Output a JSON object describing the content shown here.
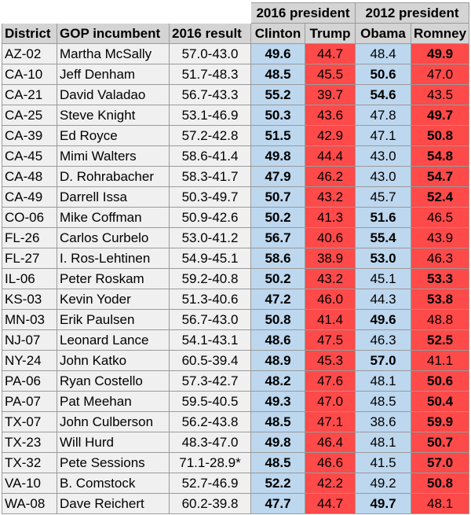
{
  "colors": {
    "dem": "#bdd7ee",
    "gop": "#ff4a4a",
    "header": "#d4d4d4",
    "row": "#f0f0f0"
  },
  "groups": [
    "2016 president",
    "2012 president"
  ],
  "headers": [
    "District",
    "GOP incumbent",
    "2016 result",
    "Clinton",
    "Trump",
    "Obama",
    "Romney"
  ],
  "rows": [
    {
      "district": "AZ-02",
      "incumbent": "Martha McSally",
      "result": "57.0-43.0",
      "clinton": "49.6",
      "trump": "44.7",
      "obama": "48.4",
      "romney": "49.9",
      "win16": "d",
      "win12": "r"
    },
    {
      "district": "CA-10",
      "incumbent": "Jeff Denham",
      "result": "51.7-48.3",
      "clinton": "48.5",
      "trump": "45.5",
      "obama": "50.6",
      "romney": "47.0",
      "win16": "d",
      "win12": "d"
    },
    {
      "district": "CA-21",
      "incumbent": "David Valadao",
      "result": "56.7-43.3",
      "clinton": "55.2",
      "trump": "39.7",
      "obama": "54.6",
      "romney": "43.5",
      "win16": "d",
      "win12": "d"
    },
    {
      "district": "CA-25",
      "incumbent": "Steve Knight",
      "result": "53.1-46.9",
      "clinton": "50.3",
      "trump": "43.6",
      "obama": "47.8",
      "romney": "49.7",
      "win16": "d",
      "win12": "r"
    },
    {
      "district": "CA-39",
      "incumbent": "Ed Royce",
      "result": "57.2-42.8",
      "clinton": "51.5",
      "trump": "42.9",
      "obama": "47.1",
      "romney": "50.8",
      "win16": "d",
      "win12": "r"
    },
    {
      "district": "CA-45",
      "incumbent": "Mimi Walters",
      "result": "58.6-41.4",
      "clinton": "49.8",
      "trump": "44.4",
      "obama": "43.0",
      "romney": "54.8",
      "win16": "d",
      "win12": "r"
    },
    {
      "district": "CA-48",
      "incumbent": "D. Rohrabacher",
      "result": "58.3-41.7",
      "clinton": "47.9",
      "trump": "46.2",
      "obama": "43.0",
      "romney": "54.7",
      "win16": "d",
      "win12": "r"
    },
    {
      "district": "CA-49",
      "incumbent": "Darrell Issa",
      "result": "50.3-49.7",
      "clinton": "50.7",
      "trump": "43.2",
      "obama": "45.7",
      "romney": "52.4",
      "win16": "d",
      "win12": "r"
    },
    {
      "district": "CO-06",
      "incumbent": "Mike Coffman",
      "result": "50.9-42.6",
      "clinton": "50.2",
      "trump": "41.3",
      "obama": "51.6",
      "romney": "46.5",
      "win16": "d",
      "win12": "d"
    },
    {
      "district": "FL-26",
      "incumbent": "Carlos Curbelo",
      "result": "53.0-41.2",
      "clinton": "56.7",
      "trump": "40.6",
      "obama": "55.4",
      "romney": "43.9",
      "win16": "d",
      "win12": "d"
    },
    {
      "district": "FL-27",
      "incumbent": "I. Ros-Lehtinen",
      "result": "54.9-45.1",
      "clinton": "58.6",
      "trump": "38.9",
      "obama": "53.0",
      "romney": "46.3",
      "win16": "d",
      "win12": "d"
    },
    {
      "district": "IL-06",
      "incumbent": "Peter Roskam",
      "result": "59.2-40.8",
      "clinton": "50.2",
      "trump": "43.2",
      "obama": "45.1",
      "romney": "53.3",
      "win16": "d",
      "win12": "r"
    },
    {
      "district": "KS-03",
      "incumbent": "Kevin Yoder",
      "result": "51.3-40.6",
      "clinton": "47.2",
      "trump": "46.0",
      "obama": "44.3",
      "romney": "53.8",
      "win16": "d",
      "win12": "r"
    },
    {
      "district": "MN-03",
      "incumbent": "Erik Paulsen",
      "result": "56.7-43.0",
      "clinton": "50.8",
      "trump": "41.4",
      "obama": "49.6",
      "romney": "48.8",
      "win16": "d",
      "win12": "d"
    },
    {
      "district": "NJ-07",
      "incumbent": "Leonard Lance",
      "result": "54.1-43.1",
      "clinton": "48.6",
      "trump": "47.5",
      "obama": "46.3",
      "romney": "52.5",
      "win16": "d",
      "win12": "r"
    },
    {
      "district": "NY-24",
      "incumbent": "John Katko",
      "result": "60.5-39.4",
      "clinton": "48.9",
      "trump": "45.3",
      "obama": "57.0",
      "romney": "41.1",
      "win16": "d",
      "win12": "d"
    },
    {
      "district": "PA-06",
      "incumbent": "Ryan Costello",
      "result": "57.3-42.7",
      "clinton": "48.2",
      "trump": "47.6",
      "obama": "48.1",
      "romney": "50.6",
      "win16": "d",
      "win12": "r"
    },
    {
      "district": "PA-07",
      "incumbent": "Pat Meehan",
      "result": "59.5-40.5",
      "clinton": "49.3",
      "trump": "47.0",
      "obama": "48.5",
      "romney": "50.4",
      "win16": "d",
      "win12": "r"
    },
    {
      "district": "TX-07",
      "incumbent": "John Culberson",
      "result": "56.2-43.8",
      "clinton": "48.5",
      "trump": "47.1",
      "obama": "38.6",
      "romney": "59.9",
      "win16": "d",
      "win12": "r"
    },
    {
      "district": "TX-23",
      "incumbent": "Will Hurd",
      "result": "48.3-47.0",
      "clinton": "49.8",
      "trump": "46.4",
      "obama": "48.1",
      "romney": "50.7",
      "win16": "d",
      "win12": "r"
    },
    {
      "district": "TX-32",
      "incumbent": "Pete Sessions",
      "result": "71.1-28.9*",
      "clinton": "48.5",
      "trump": "46.6",
      "obama": "41.5",
      "romney": "57.0",
      "win16": "d",
      "win12": "r"
    },
    {
      "district": "VA-10",
      "incumbent": "B. Comstock",
      "result": "52.7-46.9",
      "clinton": "52.2",
      "trump": "42.2",
      "obama": "49.2",
      "romney": "50.8",
      "win16": "d",
      "win12": "r"
    },
    {
      "district": "WA-08",
      "incumbent": "Dave Reichert",
      "result": "60.2-39.8",
      "clinton": "47.7",
      "trump": "44.7",
      "obama": "49.7",
      "romney": "48.1",
      "win16": "d",
      "win12": "d"
    }
  ]
}
